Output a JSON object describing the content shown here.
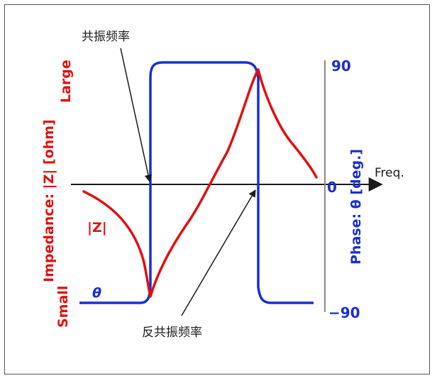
{
  "annotations": {
    "resonance": "共振频率",
    "anti_resonance": "反共振频率"
  },
  "axes": {
    "x_label": "Freq.",
    "left_axis": {
      "label": "Impedance: |Z| [ohm]",
      "top_label": "Large",
      "bottom_label": "Small",
      "color": "#e01010"
    },
    "right_axis": {
      "label": "Phase: θ [deg.]",
      "ticks": [
        "90",
        "0",
        "−90"
      ],
      "color": "#1a2fcc"
    }
  },
  "curves": {
    "impedance": {
      "label": "|Z|",
      "color": "#e01010"
    },
    "phase": {
      "label": "θ",
      "color": "#1a2fcc"
    }
  }
}
